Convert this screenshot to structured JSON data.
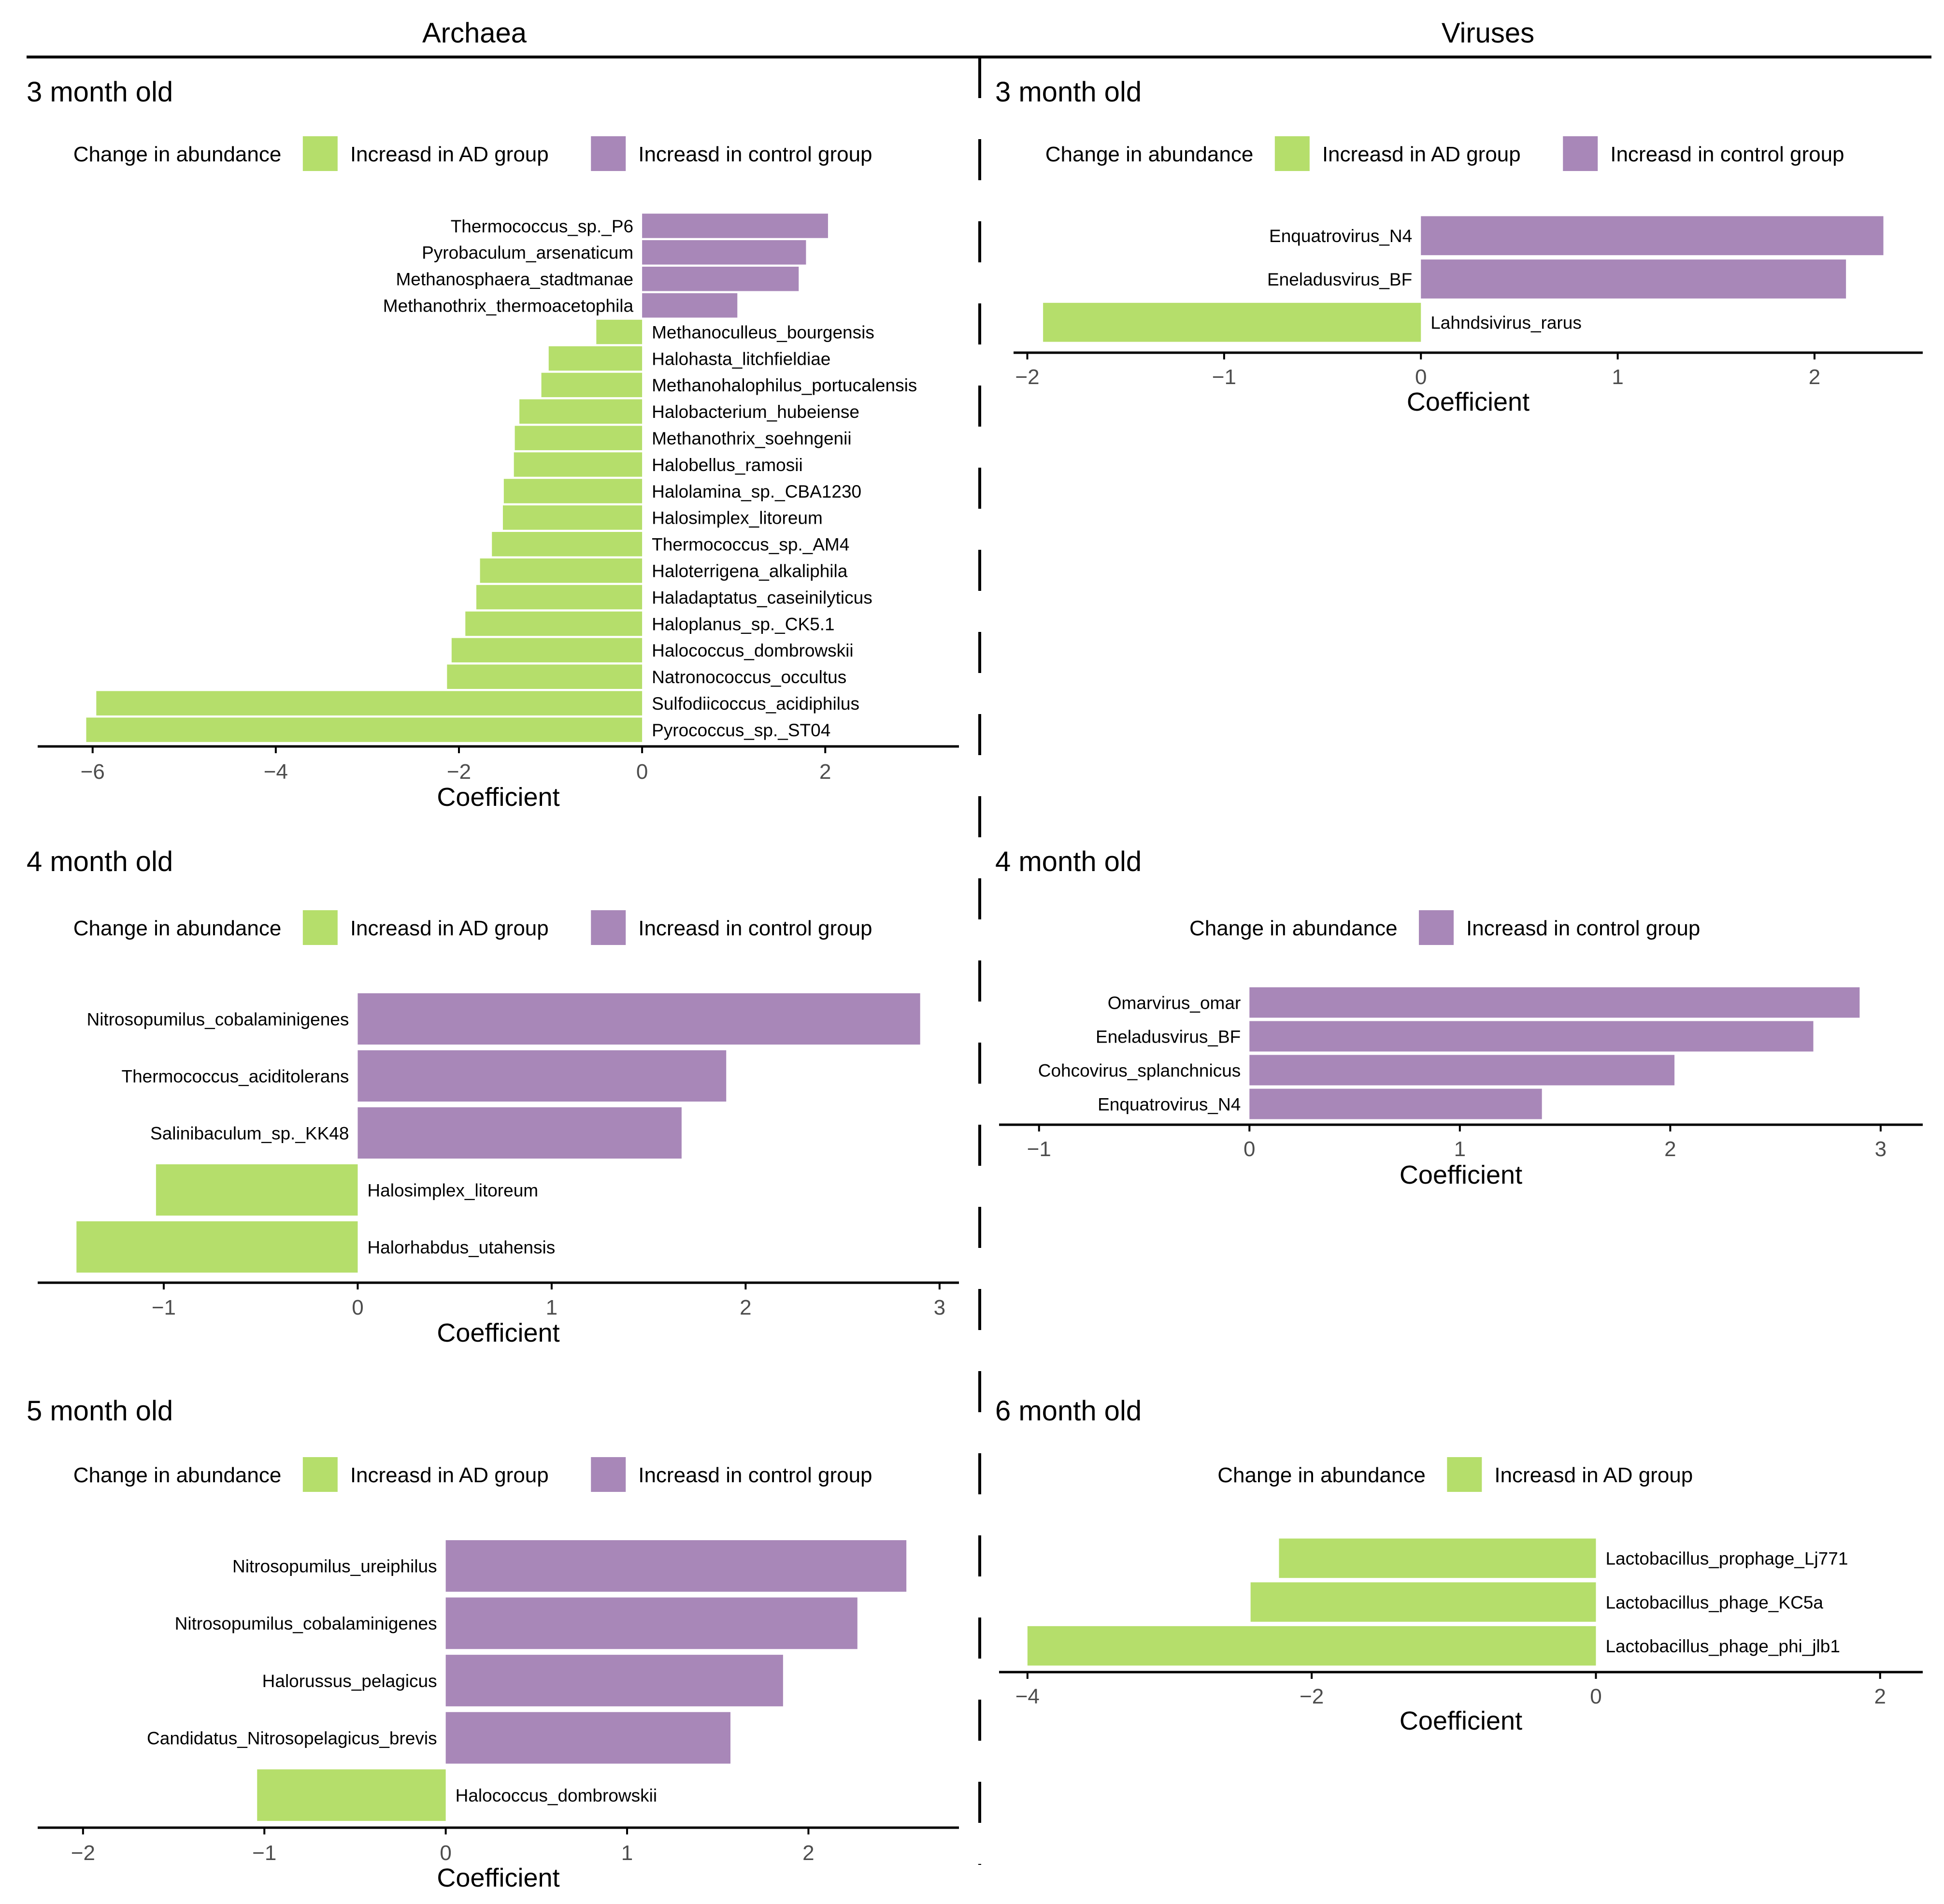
{
  "colors": {
    "ad": "#b5de6b",
    "control": "#a887b8",
    "axis": "#000000",
    "tick_label": "#4d4d4d"
  },
  "columns": [
    "Archaea",
    "Viruses"
  ],
  "legend": {
    "title": "Change in abundance",
    "ad_label": "Increasd in AD group",
    "control_label": "Increasd in control group"
  },
  "chart_data": [
    {
      "type": "bar",
      "orientation": "horizontal",
      "column": "Archaea",
      "title": "3 month old",
      "xlabel": "Coefficient",
      "xlim": [
        -6.6,
        3.46
      ],
      "xticks": [
        -6,
        -4,
        -2,
        0,
        2
      ],
      "xtick_labels": [
        "−6",
        "−4",
        "−2",
        "0",
        "2"
      ],
      "legend_groups": [
        "ad",
        "control"
      ],
      "categories": [
        "Thermococcus_sp._P6",
        "Pyrobaculum_arsenaticum",
        "Methanosphaera_stadtmanae",
        "Methanothrix_thermoacetophila",
        "Methanoculleus_bourgensis",
        "Halohasta_litchfieldiae",
        "Methanohalophilus_portucalensis",
        "Halobacterium_hubeiense",
        "Methanothrix_soehngenii",
        "Halobellus_ramosii",
        "Halolamina_sp._CBA1230",
        "Halosimplex_litoreum",
        "Thermococcus_sp._AM4",
        "Haloterrigena_alkaliphila",
        "Haladaptatus_caseinilyticus",
        "Haloplanus_sp._CK5.1",
        "Halococcus_dombrowskii",
        "Natronococcus_occultus",
        "Sulfodiicoccus_acidiphilus",
        "Pyrococcus_sp._ST04"
      ],
      "values": [
        2.03,
        1.79,
        1.71,
        1.04,
        -0.5,
        -1.02,
        -1.1,
        -1.34,
        -1.39,
        -1.4,
        -1.51,
        -1.52,
        -1.64,
        -1.77,
        -1.81,
        -1.93,
        -2.08,
        -2.13,
        -5.96,
        -6.07
      ]
    },
    {
      "type": "bar",
      "orientation": "horizontal",
      "column": "Viruses",
      "title": "3 month old",
      "xlabel": "Coefficient",
      "xlim": [
        -2.07,
        2.55
      ],
      "xticks": [
        -2,
        -1,
        0,
        1,
        2
      ],
      "xtick_labels": [
        "−2",
        "−1",
        "0",
        "1",
        "2"
      ],
      "legend_groups": [
        "ad",
        "control"
      ],
      "categories": [
        "Enquatrovirus_N4",
        "Eneladusvirus_BF",
        "Lahndsivirus_rarus"
      ],
      "values": [
        2.35,
        2.16,
        -1.92
      ]
    },
    {
      "type": "bar",
      "orientation": "horizontal",
      "column": "Archaea",
      "title": "4 month old",
      "xlabel": "Coefficient",
      "xlim": [
        -1.65,
        3.1
      ],
      "xticks": [
        -1,
        0,
        1,
        2,
        3
      ],
      "xtick_labels": [
        "−1",
        "0",
        "1",
        "2",
        "3"
      ],
      "legend_groups": [
        "ad",
        "control"
      ],
      "categories": [
        "Nitrosopumilus_cobalaminigenes",
        "Thermococcus_aciditolerans",
        "Salinibaculum_sp._KK48",
        "Halosimplex_litoreum",
        "Halorhabdus_utahensis"
      ],
      "values": [
        2.9,
        1.9,
        1.67,
        -1.04,
        -1.45
      ]
    },
    {
      "type": "bar",
      "orientation": "horizontal",
      "column": "Viruses",
      "title": "4 month old",
      "xlabel": "Coefficient",
      "xlim": [
        -1.19,
        3.2
      ],
      "xticks": [
        -1,
        0,
        1,
        2,
        3
      ],
      "xtick_labels": [
        "−1",
        "0",
        "1",
        "2",
        "3"
      ],
      "legend_groups": [
        "control"
      ],
      "categories": [
        "Omarvirus_omar",
        "Eneladusvirus_BF",
        "Cohcovirus_splanchnicus",
        "Enquatrovirus_N4"
      ],
      "values": [
        2.9,
        2.68,
        2.02,
        1.39
      ]
    },
    {
      "type": "bar",
      "orientation": "horizontal",
      "column": "Archaea",
      "title": "5 month old",
      "xlabel": "Coefficient",
      "xlim": [
        -2.25,
        2.83
      ],
      "xticks": [
        -2,
        -1,
        0,
        1,
        2
      ],
      "xtick_labels": [
        "−2",
        "−1",
        "0",
        "1",
        "2"
      ],
      "legend_groups": [
        "ad",
        "control"
      ],
      "categories": [
        "Nitrosopumilus_ureiphilus",
        "Nitrosopumilus_cobalaminigenes",
        "Halorussus_pelagicus",
        "Candidatus_Nitrosopelagicus_brevis",
        "Halococcus_dombrowskii"
      ],
      "values": [
        2.54,
        2.27,
        1.86,
        1.57,
        -1.04
      ]
    },
    {
      "type": "bar",
      "orientation": "horizontal",
      "column": "Viruses",
      "title": "6 month old",
      "xlabel": "Coefficient",
      "xlim": [
        -4.2,
        2.3
      ],
      "xticks": [
        -4,
        -2,
        0,
        2
      ],
      "xtick_labels": [
        "−4",
        "−2",
        "0",
        "2"
      ],
      "legend_groups": [
        "ad"
      ],
      "categories": [
        "Lactobacillus_prophage_Lj771",
        "Lactobacillus_phage_KC5a",
        "Lactobacillus_phage_phi_jlb1"
      ],
      "values": [
        -2.23,
        -2.43,
        -4.0
      ]
    }
  ]
}
